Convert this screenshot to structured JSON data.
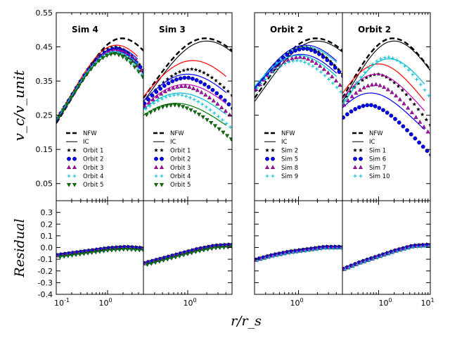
{
  "chart_data": {
    "type": "line",
    "ylabel_top": "v_c/v_unit",
    "ylabel_bottom": "Residual",
    "xlabel": "r/r_s",
    "x_scale": "log",
    "top_ylim": [
      0.0,
      0.55
    ],
    "bottom_ylim": [
      -0.4,
      0.4
    ],
    "top_yticks": [
      "0.05",
      "0.15",
      "0.25",
      "0.35",
      "0.45",
      "0.55"
    ],
    "bottom_yticks": [
      "-0.4",
      "-0.3",
      "-0.2",
      "-0.1",
      "0.0",
      "0.1",
      "0.2",
      "0.3"
    ],
    "x_tick_labels": {
      "tenth": "10",
      "tenth_exp": "-1",
      "one": "10",
      "one_exp": "0",
      "ten": "10",
      "ten_exp": "1"
    },
    "colors": {
      "orbit1": "#000000",
      "orbit2": "#0000ff",
      "orbit3": "#c000c0",
      "orbit4": "#00bcd4",
      "orbit5": "#008000",
      "red": "#ff0000"
    },
    "panels": [
      {
        "title": "Sim 4",
        "xlim": [
          0.1,
          5.0
        ],
        "show_ic": false,
        "nfw": {
          "rmax": 1.9,
          "vmax": 0.475
        },
        "legend": [
          "NFW",
          "IC",
          "Orbit 1",
          "Orbit 2",
          "Orbit 3",
          "Orbit 4",
          "Orbit 5"
        ],
        "series": [
          {
            "name": "Orbit 1",
            "marker": "star",
            "color": "orbit1",
            "rmax": 1.5,
            "vmax": 0.45,
            "line_color": "red",
            "line_vmax": 0.455
          },
          {
            "name": "Orbit 2",
            "marker": "circle",
            "color": "orbit2",
            "rmax": 1.5,
            "vmax": 0.445,
            "line_color": "orbit2",
            "line_vmax": 0.447
          },
          {
            "name": "Orbit 3",
            "marker": "triangle-up",
            "color": "orbit3",
            "rmax": 1.45,
            "vmax": 0.44,
            "line_color": "orbit3",
            "line_vmax": 0.441
          },
          {
            "name": "Orbit 4",
            "marker": "plus",
            "color": "orbit4",
            "rmax": 1.4,
            "vmax": 0.435,
            "line_color": "orbit4",
            "line_vmax": 0.436
          },
          {
            "name": "Orbit 5",
            "marker": "triangle-down",
            "color": "orbit5",
            "rmax": 1.4,
            "vmax": 0.43,
            "line_color": "orbit5",
            "line_vmax": 0.43
          }
        ],
        "residuals": [
          -0.06,
          -0.04,
          -0.02,
          0.0,
          0.01,
          0.0
        ]
      },
      {
        "title": "Sim 3",
        "xlim": [
          0.2,
          5.0
        ],
        "show_ic": true,
        "nfw": {
          "rmax": 1.9,
          "vmax": 0.475
        },
        "legend": [
          "NFW",
          "IC",
          "Orbit 1",
          "Orbit 2",
          "Orbit 3",
          "Orbit 4",
          "Orbit 5"
        ],
        "series": [
          {
            "name": "Orbit 1",
            "marker": "star",
            "color": "orbit1",
            "rmax": 1.2,
            "vmax": 0.385,
            "line_color": "red",
            "line_vmax": 0.41
          },
          {
            "name": "Orbit 2",
            "marker": "circle",
            "color": "orbit2",
            "rmax": 1.0,
            "vmax": 0.36,
            "line_color": "orbit2",
            "line_vmax": 0.37
          },
          {
            "name": "Orbit 3",
            "marker": "triangle-up",
            "color": "orbit3",
            "rmax": 0.9,
            "vmax": 0.335,
            "line_color": "orbit3",
            "line_vmax": 0.34
          },
          {
            "name": "Orbit 4",
            "marker": "plus",
            "color": "orbit4",
            "rmax": 0.75,
            "vmax": 0.31,
            "line_color": "orbit4",
            "line_vmax": 0.315
          },
          {
            "name": "Orbit 5",
            "marker": "triangle-down",
            "color": "orbit5",
            "rmax": 0.65,
            "vmax": 0.28,
            "line_color": "orbit5",
            "line_vmax": 0.285
          }
        ],
        "residuals": [
          -0.13,
          -0.09,
          -0.05,
          -0.01,
          0.02,
          0.03
        ]
      },
      {
        "title": "Orbit 2",
        "xlim": [
          0.2,
          5.0
        ],
        "show_ic": true,
        "nfw": {
          "rmax": 1.9,
          "vmax": 0.475
        },
        "legend": [
          "NFW",
          "IC",
          "Sim 2",
          "Sim 5",
          "Sim 8",
          "Sim 9"
        ],
        "series": [
          {
            "name": "Sim 2",
            "marker": "star",
            "color": "orbit1",
            "rmax": 1.3,
            "vmax": 0.45,
            "line_color": "orbit2",
            "line_vmax": 0.455
          },
          {
            "name": "Sim 5",
            "marker": "circle",
            "color": "orbit2",
            "rmax": 1.3,
            "vmax": 0.445,
            "line_color": "orbit4",
            "line_vmax": 0.45
          },
          {
            "name": "Sim 8",
            "marker": "triangle-up",
            "color": "orbit3",
            "rmax": 1.1,
            "vmax": 0.42,
            "line_color": "orbit2",
            "line_vmax": 0.428
          },
          {
            "name": "Sim 9",
            "marker": "plus",
            "color": "orbit4",
            "rmax": 1.0,
            "vmax": 0.41,
            "line_color": "orbit4",
            "line_vmax": 0.425
          }
        ],
        "residuals": [
          -0.1,
          -0.06,
          -0.03,
          -0.01,
          0.01,
          0.01
        ]
      },
      {
        "title": "Orbit 2",
        "xlim": [
          0.2,
          10.0
        ],
        "show_ic": true,
        "nfw": {
          "rmax": 1.9,
          "vmax": 0.475
        },
        "legend": [
          "NFW",
          "IC",
          "Sim 1",
          "Sim 6",
          "Sim 7",
          "Sim 10"
        ],
        "series": [
          {
            "name": "Sim 1",
            "marker": "star",
            "color": "orbit1",
            "rmax": 1.0,
            "vmax": 0.37,
            "line_color": "red",
            "line_vmax": 0.4
          },
          {
            "name": "Sim 6",
            "marker": "circle",
            "color": "orbit2",
            "rmax": 0.7,
            "vmax": 0.28,
            "line_color": "orbit2",
            "line_vmax": 0.315
          },
          {
            "name": "Sim 7",
            "marker": "triangle-up",
            "color": "orbit3",
            "rmax": 0.9,
            "vmax": 0.34,
            "line_color": "orbit3",
            "line_vmax": 0.37
          },
          {
            "name": "Sim 10",
            "marker": "plus",
            "color": "orbit4",
            "rmax": 1.6,
            "vmax": 0.42,
            "line_color": "orbit4",
            "line_vmax": 0.415
          }
        ],
        "residuals": [
          -0.18,
          -0.12,
          -0.07,
          -0.02,
          0.02,
          0.03
        ]
      }
    ]
  }
}
